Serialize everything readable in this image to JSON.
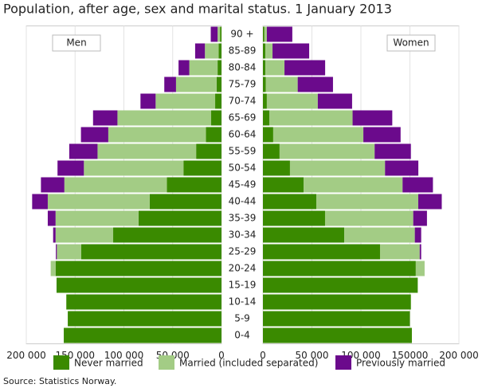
{
  "chart_data": {
    "type": "pyramid",
    "title": "Population, after age, sex and marital status. 1 January 2013",
    "panel_labels": [
      "Men",
      "Women"
    ],
    "categories": [
      "90 +",
      "85-89",
      "80-84",
      "75-79",
      "70-74",
      "65-69",
      "60-64",
      "55-59",
      "50-54",
      "45-49",
      "40-44",
      "35-39",
      "30-34",
      "25-29",
      "20-24",
      "15-19",
      "10-14",
      "5-9",
      "0-4"
    ],
    "series": [
      {
        "name": "Never married",
        "color": "#3a8a00",
        "men": [
          1500,
          3000,
          4000,
          5000,
          6500,
          10600,
          16000,
          26000,
          39000,
          56000,
          73500,
          85000,
          111000,
          143700,
          170000,
          169000,
          159000,
          157500,
          161600
        ],
        "women": [
          1500,
          2500,
          2500,
          3000,
          4000,
          6500,
          10500,
          17000,
          27600,
          41500,
          54500,
          63400,
          83000,
          119500,
          156000,
          158000,
          151000,
          150000,
          152000
        ]
      },
      {
        "name": "Married (included separated)",
        "color": "#a3cc85",
        "men": [
          2500,
          14000,
          29000,
          41600,
          61000,
          96000,
          100000,
          101000,
          102000,
          105000,
          104500,
          85000,
          59000,
          25000,
          5000,
          0,
          0,
          0,
          0
        ],
        "women": [
          2500,
          7300,
          19500,
          32500,
          52000,
          85000,
          92000,
          97000,
          97000,
          101000,
          104000,
          90000,
          72000,
          40500,
          9000,
          0,
          0,
          0,
          0
        ]
      },
      {
        "name": "Previously married",
        "color": "#6b0a8c",
        "men": [
          7000,
          10000,
          11000,
          12000,
          15500,
          25000,
          28000,
          29000,
          27000,
          24000,
          16000,
          8000,
          2500,
          1000,
          0,
          0,
          0,
          0,
          0
        ],
        "women": [
          26000,
          37400,
          41500,
          36000,
          35000,
          40500,
          38000,
          37000,
          34000,
          31000,
          24000,
          14000,
          6500,
          1500,
          0,
          0,
          0,
          0,
          0
        ]
      }
    ],
    "xlim": [
      0,
      200000
    ],
    "xticks_left": [
      {
        "value": 200000,
        "label": "200 000"
      },
      {
        "value": 150000,
        "label": "150 000"
      },
      {
        "value": 100000,
        "label": "100 000"
      },
      {
        "value": 50000,
        "label": "50 000"
      },
      0
    ],
    "xticks_right": [
      0,
      {
        "value": 50000,
        "label": "50 000"
      },
      {
        "value": 100000,
        "label": "100 000"
      },
      150000,
      {
        "value": 200000,
        "label": "200 000"
      }
    ],
    "grid": true,
    "source": "Source: Statistics Norway."
  }
}
